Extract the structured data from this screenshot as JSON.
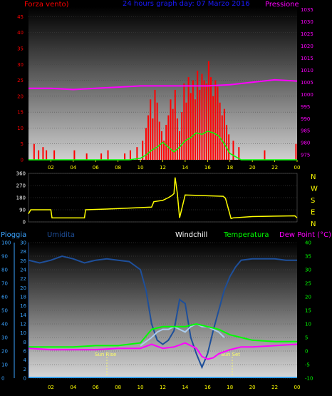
{
  "header": {
    "wind_title": "Forza vento)",
    "date_title": "24 hours graph day:  07 Marzo 2016",
    "pressure_title": "Pressione",
    "rain_title": "Pioggia",
    "humidity_title": "Umidita",
    "windchill_title": "Windchill",
    "temp_title": "Temperatura",
    "dew_title": "Dew Point (°C)"
  },
  "annotations": {
    "sunrise": "Sun Rise",
    "sunset": "Sun Set"
  },
  "colors": {
    "wind": "#ff0000",
    "gust_avg": "#00ff00",
    "pressure": "#ff00ff",
    "direction": "#ffff00",
    "humidity": "#1e4f9a",
    "windchill": "#aaccee",
    "temperature": "#00ff00",
    "dewpoint": "#ff00ff",
    "rain": "#3aa3ff",
    "time_axis": "#ffff00"
  },
  "chart_data": [
    {
      "type": "line",
      "panel": "wind_pressure",
      "x_ticks": [
        "02",
        "04",
        "06",
        "08",
        "10",
        "12",
        "14",
        "16",
        "18",
        "20",
        "22",
        "00"
      ],
      "y_left_ticks": [
        "0",
        "5",
        "10",
        "15",
        "20",
        "25",
        "30",
        "35",
        "40",
        "45"
      ],
      "y_left_lim": [
        0,
        48
      ],
      "y_right_ticks": [
        "975",
        "980",
        "985",
        "990",
        "995",
        "1000",
        "1005",
        "1010",
        "1015",
        "1020",
        "1025",
        "1030",
        "1035"
      ],
      "y_right_lim": [
        973,
        1036
      ],
      "series": [
        {
          "name": "Forza vento)",
          "axis": "left",
          "type": "bar",
          "x": [
            0.5,
            0.9,
            1.3,
            1.6,
            2.3,
            4.1,
            5.2,
            6.5,
            7.1,
            8.6,
            9.1,
            9.7,
            10.2,
            10.5,
            10.7,
            10.9,
            11.1,
            11.3,
            11.5,
            11.7,
            11.9,
            12.1,
            12.3,
            12.5,
            12.7,
            12.9,
            13.1,
            13.3,
            13.5,
            13.7,
            13.9,
            14.1,
            14.3,
            14.5,
            14.7,
            14.9,
            15.1,
            15.3,
            15.5,
            15.7,
            15.9,
            16.1,
            16.3,
            16.5,
            16.7,
            16.9,
            17.1,
            17.3,
            17.5,
            17.7,
            17.9,
            18.3,
            18.8,
            21.1,
            23.9
          ],
          "y": [
            5,
            3,
            4,
            3,
            3,
            3,
            2,
            2,
            3,
            2,
            3,
            4,
            6,
            10,
            14,
            19,
            13,
            22,
            18,
            12,
            9,
            6,
            11,
            14,
            19,
            16,
            22,
            13,
            9,
            15,
            24,
            18,
            26,
            21,
            25,
            19,
            28,
            22,
            27,
            25,
            24,
            31,
            26,
            20,
            25,
            23,
            18,
            14,
            16,
            11,
            8,
            6,
            4,
            3,
            5
          ]
        },
        {
          "name": "",
          "axis": "left",
          "type": "line",
          "x": [
            0,
            9,
            10,
            10.5,
            11,
            11.5,
            12,
            12.5,
            13,
            13.5,
            14,
            14.5,
            15,
            15.5,
            16,
            16.5,
            17,
            17.5,
            18,
            18.5,
            19,
            24
          ],
          "y": [
            0,
            0,
            0.5,
            1.5,
            3,
            4,
            5.5,
            4,
            2.5,
            4,
            6,
            7,
            8.5,
            8,
            9,
            8.5,
            7.5,
            5,
            2,
            1,
            0,
            0
          ]
        },
        {
          "name": "Pressione",
          "axis": "right",
          "type": "line",
          "x": [
            0,
            2,
            4,
            6,
            8,
            10,
            12,
            14,
            16,
            18,
            20,
            22,
            24
          ],
          "y": [
            1002.5,
            1002.5,
            1002,
            1002.5,
            1003,
            1003.5,
            1003.5,
            1003.5,
            1003.5,
            1004,
            1005,
            1006,
            1005.5
          ]
        }
      ]
    },
    {
      "type": "line",
      "panel": "wind_direction",
      "y_ticks": [
        "0",
        "90",
        "180",
        "270",
        "360"
      ],
      "y_lim": [
        0,
        360
      ],
      "compass": [
        "N",
        "W",
        "S",
        "E",
        "N"
      ],
      "series": [
        {
          "name": "",
          "x": [
            0,
            0.2,
            2.0,
            2.1,
            5.0,
            5.1,
            7.0,
            11.0,
            11.2,
            12.0,
            12.5,
            12.8,
            13.0,
            13.1,
            13.3,
            13.5,
            14.0,
            17.4,
            17.6,
            18.1,
            18.3,
            20.0,
            23.8,
            24.0
          ],
          "y": [
            60,
            90,
            90,
            30,
            30,
            90,
            95,
            110,
            150,
            160,
            180,
            195,
            210,
            330,
            210,
            30,
            200,
            190,
            175,
            25,
            30,
            40,
            45,
            30
          ]
        }
      ]
    },
    {
      "type": "line",
      "panel": "temp_humidity",
      "y_left_outer_ticks": [
        "0",
        "10",
        "20",
        "30",
        "40",
        "50",
        "60",
        "70",
        "80",
        "90",
        "100"
      ],
      "y_left_inner_ticks": [
        "0",
        "2",
        "4",
        "6",
        "8",
        "10",
        "12",
        "14",
        "16",
        "18",
        "20",
        "22",
        "24",
        "26",
        "28",
        "30"
      ],
      "y_right_ticks": [
        "-10",
        "-5",
        "0",
        "5",
        "10",
        "15",
        "20",
        "25",
        "30",
        "35",
        "40"
      ],
      "y_right_lim": [
        -10,
        40
      ],
      "series": [
        {
          "name": "Umidita",
          "axis": "outer",
          "x": [
            0,
            1,
            2,
            3,
            4,
            5,
            6,
            7,
            8,
            9,
            10,
            10.5,
            11,
            11.5,
            12,
            12.5,
            13,
            13.5,
            14,
            14.5,
            15,
            15.5,
            16,
            16.5,
            17,
            17.5,
            18,
            18.5,
            19,
            20,
            21,
            22,
            23,
            24
          ],
          "y": [
            87,
            85,
            87,
            90,
            88,
            85,
            87,
            88,
            87,
            86,
            80,
            65,
            40,
            28,
            25,
            28,
            35,
            58,
            55,
            30,
            18,
            8,
            18,
            35,
            50,
            65,
            75,
            82,
            87,
            88,
            88,
            88,
            87,
            87
          ]
        },
        {
          "name": "Windchill",
          "axis": "right",
          "x": [
            10,
            11,
            11.5,
            12,
            12.5,
            13,
            13.5,
            14,
            14.5,
            15,
            15.5,
            16,
            16.5,
            17,
            17.5
          ],
          "y": [
            2,
            5,
            7,
            8,
            8,
            9,
            8,
            7,
            9,
            10,
            9,
            9,
            8,
            7,
            5
          ]
        },
        {
          "name": "Temperatura",
          "axis": "right",
          "x": [
            0,
            2,
            4,
            6,
            8,
            10,
            11,
            12,
            13,
            14,
            15,
            16,
            17,
            18,
            19,
            20,
            22,
            24
          ],
          "y": [
            1.5,
            1.5,
            1.5,
            2,
            2,
            3,
            8,
            9,
            9,
            9,
            10,
            9,
            8,
            6,
            5,
            4,
            3.5,
            3.5
          ]
        },
        {
          "name": "Dew Point (°C)",
          "axis": "right",
          "x": [
            0,
            2,
            4,
            6,
            8,
            10,
            11,
            12,
            13,
            14,
            15,
            15.5,
            16,
            16.5,
            17,
            18,
            19,
            20,
            22,
            24
          ],
          "y": [
            1,
            0.5,
            0.5,
            0.5,
            1,
            1,
            2.5,
            1,
            1.5,
            3,
            1,
            -2,
            -3,
            -2.5,
            -1,
            0.5,
            1.5,
            1.5,
            2,
            2.5
          ]
        },
        {
          "name": "Pioggia",
          "axis": "outer",
          "x": [
            0,
            12,
            24
          ],
          "y": [
            0,
            0,
            0
          ]
        }
      ],
      "x_ticks": [
        "02",
        "04",
        "06",
        "08",
        "10",
        "12",
        "14",
        "16",
        "18",
        "20",
        "22",
        "00"
      ]
    }
  ]
}
